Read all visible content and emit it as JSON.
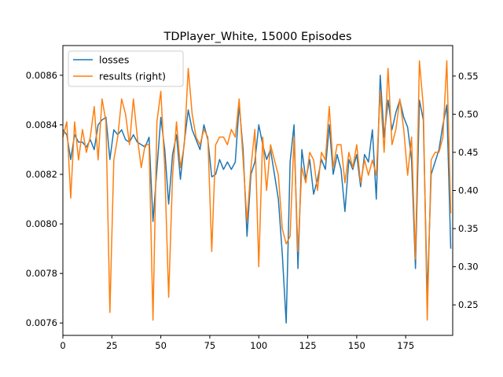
{
  "chart_data": {
    "type": "line",
    "title": "TDPlayer_White, 15000 Episodes",
    "xlim": [
      0,
      199
    ],
    "ylim_left": [
      0.00755,
      0.00872
    ],
    "ylim_right": [
      0.21,
      0.59
    ],
    "x_ticks": [
      0,
      25,
      50,
      75,
      100,
      125,
      150,
      175
    ],
    "x_tick_labels": [
      "0",
      "25",
      "50",
      "75",
      "100",
      "125",
      "150",
      "175"
    ],
    "y_left_ticks": [
      0.0076,
      0.0078,
      0.008,
      0.0082,
      0.0084,
      0.0086
    ],
    "y_left_tick_labels": [
      "0.0076",
      "0.0078",
      "0.0080",
      "0.0082",
      "0.0084",
      "0.0086"
    ],
    "y_right_ticks": [
      0.25,
      0.3,
      0.35,
      0.4,
      0.45,
      0.5,
      0.55
    ],
    "y_right_tick_labels": [
      "0.25",
      "0.30",
      "0.35",
      "0.40",
      "0.45",
      "0.50",
      "0.55"
    ],
    "grid": false,
    "legend_position": "top-left",
    "series": [
      {
        "name": "losses",
        "axis": "left",
        "color": "#1f77b4",
        "x": [
          0,
          2,
          4,
          6,
          8,
          10,
          12,
          14,
          16,
          18,
          20,
          22,
          24,
          26,
          28,
          30,
          32,
          34,
          36,
          38,
          40,
          42,
          44,
          46,
          48,
          50,
          52,
          54,
          56,
          58,
          60,
          62,
          64,
          66,
          68,
          70,
          72,
          74,
          76,
          78,
          80,
          82,
          84,
          86,
          88,
          90,
          92,
          94,
          96,
          98,
          100,
          102,
          104,
          106,
          108,
          110,
          112,
          114,
          116,
          118,
          120,
          122,
          124,
          126,
          128,
          130,
          132,
          134,
          136,
          138,
          140,
          142,
          144,
          146,
          148,
          150,
          152,
          154,
          156,
          158,
          160,
          162,
          164,
          166,
          168,
          170,
          172,
          174,
          176,
          178,
          180,
          182,
          184,
          186,
          188,
          190,
          192,
          194,
          196,
          198
        ],
        "y": [
          0.00838,
          0.00836,
          0.00826,
          0.00836,
          0.00833,
          0.00833,
          0.00831,
          0.00834,
          0.0083,
          0.0084,
          0.00842,
          0.00843,
          0.00826,
          0.00838,
          0.00836,
          0.00838,
          0.00834,
          0.00833,
          0.00836,
          0.00833,
          0.00832,
          0.00831,
          0.00835,
          0.00801,
          0.00822,
          0.00843,
          0.0083,
          0.00808,
          0.00828,
          0.00836,
          0.00818,
          0.00833,
          0.00846,
          0.00838,
          0.00834,
          0.0083,
          0.0084,
          0.00834,
          0.00819,
          0.0082,
          0.00826,
          0.00822,
          0.00825,
          0.00822,
          0.00825,
          0.00848,
          0.0083,
          0.00795,
          0.0082,
          0.00825,
          0.0084,
          0.00832,
          0.00826,
          0.0083,
          0.0082,
          0.0081,
          0.00788,
          0.0076,
          0.00825,
          0.0084,
          0.00782,
          0.0083,
          0.00818,
          0.00826,
          0.00812,
          0.00818,
          0.00826,
          0.00822,
          0.0084,
          0.0082,
          0.00828,
          0.00822,
          0.00805,
          0.00826,
          0.00822,
          0.00828,
          0.00815,
          0.00828,
          0.00825,
          0.00838,
          0.0081,
          0.0086,
          0.00835,
          0.0085,
          0.00838,
          0.00845,
          0.0085,
          0.00843,
          0.00839,
          0.00826,
          0.00782,
          0.0085,
          0.00842,
          0.0077,
          0.0082,
          0.00825,
          0.0083,
          0.0084,
          0.00848,
          0.0079
        ]
      },
      {
        "name": "results (right)",
        "axis": "right",
        "color": "#ff7f0e",
        "x": [
          0,
          2,
          4,
          6,
          8,
          10,
          12,
          14,
          16,
          18,
          20,
          22,
          24,
          26,
          28,
          30,
          32,
          34,
          36,
          38,
          40,
          42,
          44,
          46,
          48,
          50,
          52,
          54,
          56,
          58,
          60,
          62,
          64,
          66,
          68,
          70,
          72,
          74,
          76,
          78,
          80,
          82,
          84,
          86,
          88,
          90,
          92,
          94,
          96,
          98,
          100,
          102,
          104,
          106,
          108,
          110,
          112,
          114,
          116,
          118,
          120,
          122,
          124,
          126,
          128,
          130,
          132,
          134,
          136,
          138,
          140,
          142,
          144,
          146,
          148,
          150,
          152,
          154,
          156,
          158,
          160,
          162,
          164,
          166,
          168,
          170,
          172,
          174,
          176,
          178,
          180,
          182,
          184,
          186,
          188,
          190,
          192,
          194,
          196,
          198
        ],
        "y": [
          0.47,
          0.49,
          0.39,
          0.49,
          0.44,
          0.48,
          0.45,
          0.47,
          0.51,
          0.44,
          0.52,
          0.49,
          0.24,
          0.44,
          0.47,
          0.52,
          0.5,
          0.46,
          0.52,
          0.47,
          0.43,
          0.46,
          0.46,
          0.23,
          0.49,
          0.53,
          0.43,
          0.26,
          0.42,
          0.49,
          0.43,
          0.46,
          0.56,
          0.5,
          0.47,
          0.46,
          0.48,
          0.47,
          0.32,
          0.46,
          0.47,
          0.47,
          0.46,
          0.48,
          0.47,
          0.52,
          0.44,
          0.36,
          0.43,
          0.48,
          0.3,
          0.47,
          0.4,
          0.46,
          0.44,
          0.42,
          0.35,
          0.33,
          0.34,
          0.47,
          0.32,
          0.43,
          0.41,
          0.45,
          0.44,
          0.4,
          0.45,
          0.44,
          0.51,
          0.43,
          0.46,
          0.46,
          0.41,
          0.45,
          0.43,
          0.46,
          0.41,
          0.44,
          0.42,
          0.44,
          0.42,
          0.53,
          0.45,
          0.56,
          0.46,
          0.48,
          0.52,
          0.48,
          0.42,
          0.47,
          0.31,
          0.57,
          0.51,
          0.23,
          0.44,
          0.45,
          0.45,
          0.47,
          0.57,
          0.37
        ]
      }
    ]
  }
}
